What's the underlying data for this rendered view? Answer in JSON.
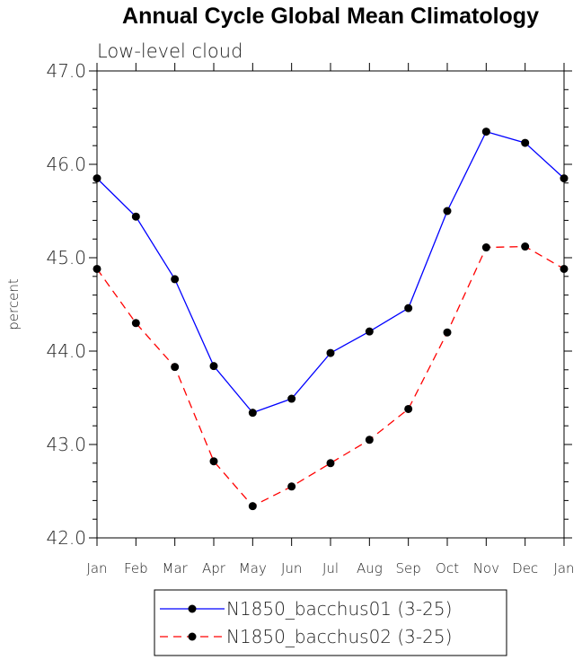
{
  "chart_data": {
    "type": "line",
    "title": "Annual Cycle Global Mean Climatology",
    "subtitle": "Low-level cloud",
    "xlabel": "",
    "ylabel": "percent",
    "categories": [
      "Jan",
      "Feb",
      "Mar",
      "Apr",
      "May",
      "Jun",
      "Jul",
      "Aug",
      "Sep",
      "Oct",
      "Nov",
      "Dec",
      "Jan"
    ],
    "ylim": [
      42.0,
      47.0
    ],
    "yticks": [
      "42.0",
      "43.0",
      "44.0",
      "45.0",
      "46.0",
      "47.0"
    ],
    "grid": false,
    "legend_position": "bottom",
    "series": [
      {
        "name": "N1850_bacchus01 (3-25)",
        "color": "#0000ff",
        "line_style": "solid",
        "values": [
          45.85,
          45.44,
          44.77,
          43.84,
          43.34,
          43.49,
          43.98,
          44.21,
          44.46,
          45.5,
          46.35,
          46.23,
          45.85
        ]
      },
      {
        "name": "N1850_bacchus02 (3-25)",
        "color": "#ff0000",
        "line_style": "dashed",
        "values": [
          44.88,
          44.3,
          43.83,
          42.82,
          42.34,
          42.55,
          42.8,
          43.05,
          43.38,
          44.2,
          45.11,
          45.12,
          44.88
        ]
      }
    ]
  }
}
